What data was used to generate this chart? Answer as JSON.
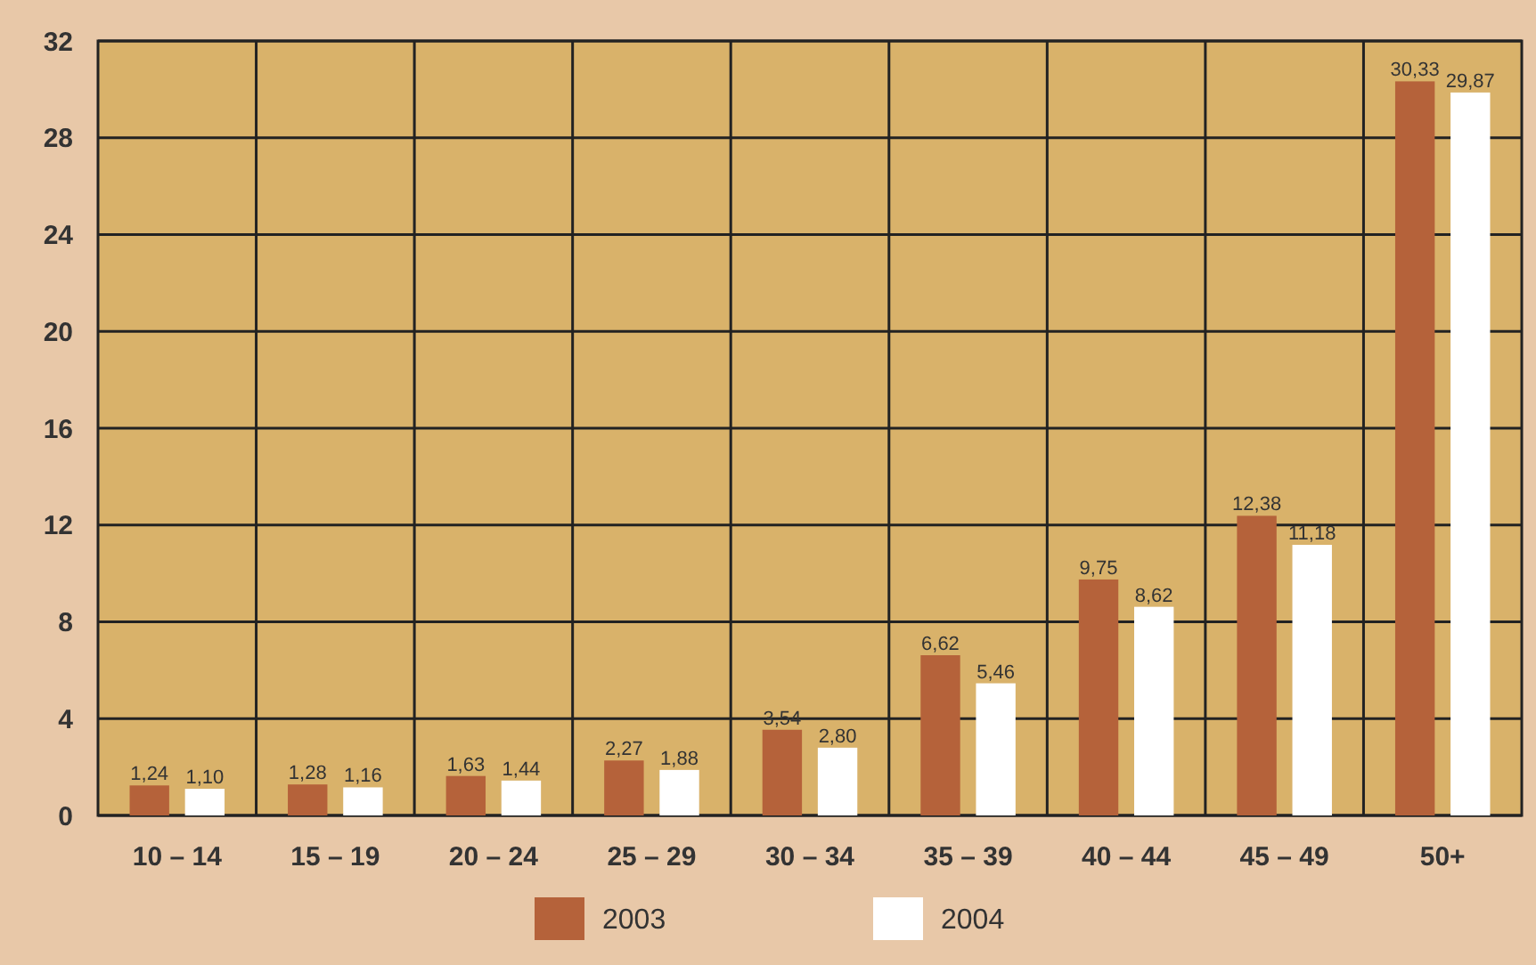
{
  "chart_data": {
    "type": "bar",
    "categories": [
      "10 – 14",
      "15 – 19",
      "20 – 24",
      "25 – 29",
      "30 – 34",
      "35 – 39",
      "40 – 44",
      "45 – 49",
      "50+"
    ],
    "series": [
      {
        "name": "2003",
        "color": "#b5623a",
        "values": [
          1.24,
          1.28,
          1.63,
          2.27,
          3.54,
          6.62,
          9.75,
          12.38,
          30.33
        ],
        "value_labels": [
          "1,24",
          "1,28",
          "1,63",
          "2,27",
          "3,54",
          "6,62",
          "9,75",
          "12,38",
          "30,33"
        ]
      },
      {
        "name": "2004",
        "color": "#ffffff",
        "values": [
          1.1,
          1.16,
          1.44,
          1.88,
          2.8,
          5.46,
          8.62,
          11.18,
          29.87
        ],
        "value_labels": [
          "1,10",
          "1,16",
          "1,44",
          "1,88",
          "2,80",
          "5,46",
          "8,62",
          "11,18",
          "29,87"
        ]
      }
    ],
    "ylim": [
      0,
      32
    ],
    "yticks": [
      0,
      4,
      8,
      12,
      16,
      20,
      24,
      28,
      32
    ],
    "grid": true,
    "legend": "bottom"
  }
}
